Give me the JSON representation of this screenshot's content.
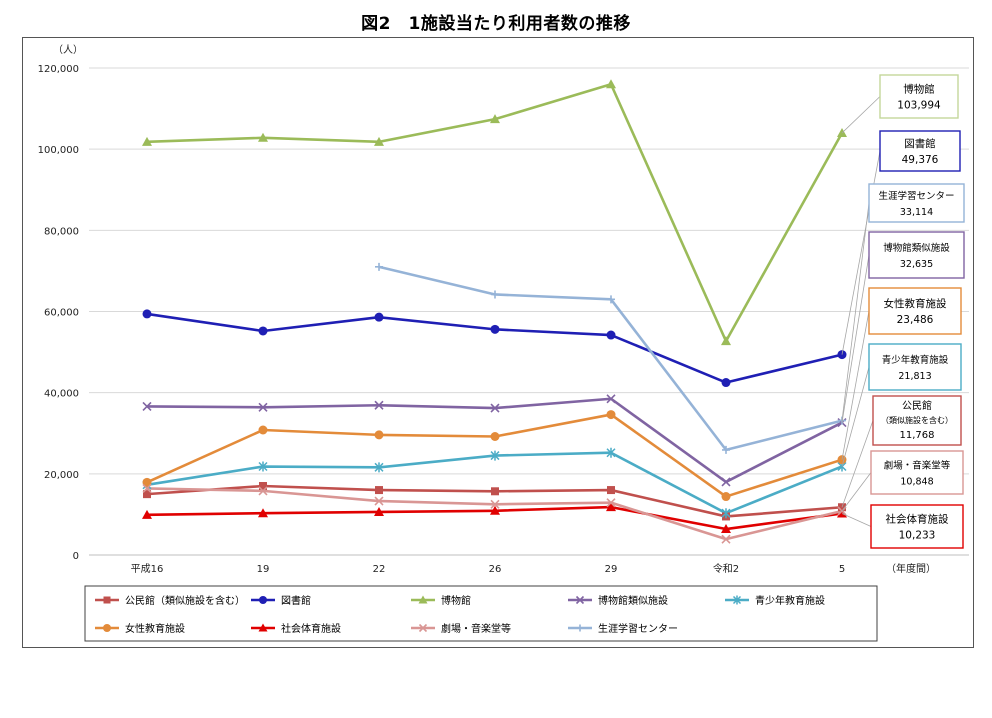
{
  "chart_data": {
    "type": "line",
    "title": "図2　1施設当たり利用者数の推移",
    "ylabel": "（人）",
    "xlabel": "（年度間）",
    "ylim": [
      0,
      120000
    ],
    "yticks": [
      0,
      20000,
      40000,
      60000,
      80000,
      100000,
      120000
    ],
    "ytick_labels": [
      "0",
      "20,000",
      "40,000",
      "60,000",
      "80,000",
      "100,000",
      "120,000"
    ],
    "categories": [
      "平成16",
      "19",
      "22",
      "26",
      "29",
      "令和2",
      "5"
    ],
    "grid": true,
    "legend_position": "bottom",
    "series": [
      {
        "name": "公民館（類似施設を含む）",
        "color": "#C0504D",
        "marker": "square",
        "values": [
          15000,
          17000,
          16000,
          15700,
          16000,
          9500,
          11768
        ]
      },
      {
        "name": "図書館",
        "color": "#1F1FB4",
        "marker": "circle",
        "values": [
          59400,
          55200,
          58600,
          55600,
          54200,
          42500,
          49376
        ]
      },
      {
        "name": "博物館",
        "color": "#9BBB59",
        "marker": "triangle",
        "values": [
          101800,
          102800,
          101800,
          107400,
          116000,
          52700,
          103994
        ]
      },
      {
        "name": "博物館類似施設",
        "color": "#8064A2",
        "marker": "x",
        "values": [
          36600,
          36400,
          36900,
          36200,
          38500,
          18000,
          32635
        ]
      },
      {
        "name": "青少年教育施設",
        "color": "#4BACC6",
        "marker": "star",
        "values": [
          17300,
          21800,
          21600,
          24500,
          25200,
          10300,
          21813
        ]
      },
      {
        "name": "女性教育施設",
        "color": "#E38B3A",
        "marker": "circle",
        "values": [
          17900,
          30800,
          29600,
          29200,
          34600,
          14400,
          23486
        ]
      },
      {
        "name": "社会体育施設",
        "color": "#E00000",
        "marker": "triangle",
        "values": [
          9900,
          10300,
          10600,
          10900,
          11800,
          6400,
          10233
        ]
      },
      {
        "name": "劇場・音楽堂等",
        "color": "#D99694",
        "marker": "x",
        "values": [
          16400,
          15800,
          13300,
          12500,
          12900,
          3900,
          10848
        ]
      },
      {
        "name": "生涯学習センター",
        "color": "#95B3D7",
        "marker": "plus",
        "values": [
          null,
          null,
          71000,
          64200,
          63000,
          25900,
          33114
        ]
      }
    ],
    "annotations": [
      {
        "series": "博物館",
        "line1": "博物館",
        "line2": "103,994",
        "border": "#C4D79B"
      },
      {
        "series": "図書館",
        "line1": "図書館",
        "line2": "49,376",
        "border": "#1F1FB4"
      },
      {
        "series": "生涯学習センター",
        "line1": "生涯学習センター",
        "line2": "33,114",
        "border": "#95B3D7"
      },
      {
        "series": "博物館類似施設",
        "line1": "博物館類似施設",
        "line2": "32,635",
        "border": "#8064A2"
      },
      {
        "series": "女性教育施設",
        "line1": "女性教育施設",
        "line2": "23,486",
        "border": "#E38B3A"
      },
      {
        "series": "青少年教育施設",
        "line1": "青少年教育施設",
        "line2": "21,813",
        "border": "#4BACC6"
      },
      {
        "series": "公民館（類似施設を含む）",
        "line1": "公民館",
        "line1b": "（類似施設を含む）",
        "line2": "11,768",
        "border": "#C0504D"
      },
      {
        "series": "劇場・音楽堂等",
        "line1": "劇場・音楽堂等",
        "line2": "10,848",
        "border": "#D99694"
      },
      {
        "series": "社会体育施設",
        "line1": "社会体育施設",
        "line2": "10,233",
        "border": "#E00000"
      }
    ]
  }
}
